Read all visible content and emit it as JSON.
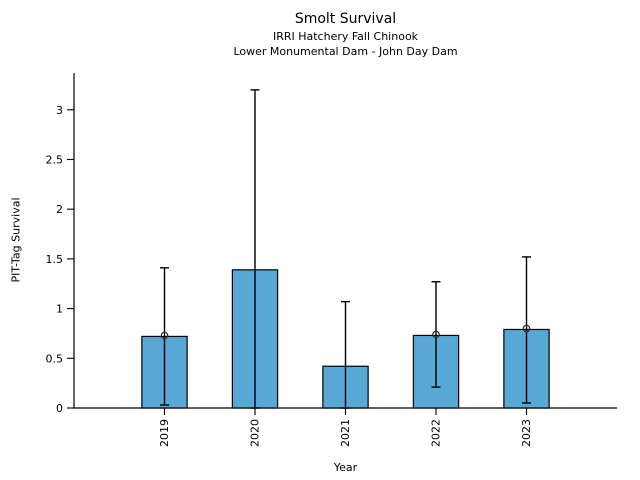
{
  "header": {
    "title": "Smolt Survival",
    "subtitle1": "IRRI Hatchery Fall Chinook",
    "subtitle2": "Lower Monumental Dam - John Day Dam"
  },
  "chart_data": {
    "type": "bar",
    "title": "Smolt Survival",
    "subtitle": [
      "IRRI Hatchery Fall Chinook",
      "Lower Monumental Dam - John Day Dam"
    ],
    "xlabel": "Year",
    "ylabel": "PIT-Tag Survival",
    "categories": [
      "2019",
      "2020",
      "2021",
      "2022",
      "2023"
    ],
    "series": [
      {
        "name": "pit-tag-survival-bars",
        "type": "bar",
        "values": [
          0.72,
          1.39,
          0.42,
          0.73,
          0.79
        ],
        "ci_low": [
          0.03,
          0.0,
          0.0,
          0.21,
          0.05
        ],
        "ci_high": [
          1.41,
          3.2,
          1.07,
          1.27,
          1.52
        ]
      },
      {
        "name": "point-estimate-markers",
        "type": "scatter",
        "values": [
          0.73,
          null,
          null,
          0.74,
          0.8
        ]
      }
    ],
    "yticks": [
      "0",
      "0.5",
      "1",
      "1.5",
      "2",
      "2.5",
      "3"
    ],
    "ylim": [
      0,
      3.37
    ],
    "xlim": [
      -1,
      5
    ],
    "bar_width": 0.5,
    "grid": false,
    "legend": false,
    "xtick_rotation": 90,
    "colors": {
      "bar_fill": "#58a8d5",
      "bar_edge": "#000000",
      "error_bar": "#000000",
      "marker_edge": "#333333",
      "axis": "#000000"
    }
  }
}
